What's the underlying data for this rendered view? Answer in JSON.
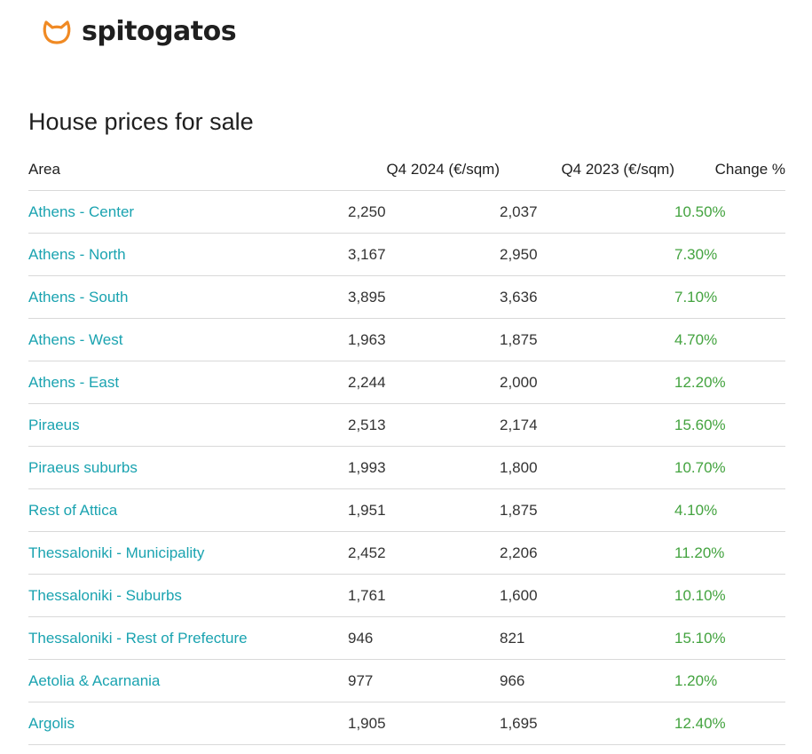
{
  "brand": {
    "name": "spitogatos",
    "color": "#f08a24"
  },
  "title": "House prices for sale",
  "table": {
    "headers": {
      "area": "Area",
      "q4_2024": "Q4 2024 (€/sqm)",
      "q4_2023": "Q4 2023 (€/sqm)",
      "change": "Change %"
    },
    "rows": [
      {
        "area": "Athens - Center",
        "q4_2024": "2,250",
        "q4_2023": "2,037",
        "change": "10.50%"
      },
      {
        "area": "Athens - North",
        "q4_2024": "3,167",
        "q4_2023": "2,950",
        "change": "7.30%"
      },
      {
        "area": "Athens - South",
        "q4_2024": "3,895",
        "q4_2023": "3,636",
        "change": "7.10%"
      },
      {
        "area": "Athens - West",
        "q4_2024": "1,963",
        "q4_2023": "1,875",
        "change": "4.70%"
      },
      {
        "area": "Athens - East",
        "q4_2024": "2,244",
        "q4_2023": "2,000",
        "change": "12.20%"
      },
      {
        "area": "Piraeus",
        "q4_2024": "2,513",
        "q4_2023": "2,174",
        "change": "15.60%"
      },
      {
        "area": "Piraeus suburbs",
        "q4_2024": "1,993",
        "q4_2023": "1,800",
        "change": "10.70%"
      },
      {
        "area": "Rest of Attica",
        "q4_2024": "1,951",
        "q4_2023": "1,875",
        "change": "4.10%"
      },
      {
        "area": "Thessaloniki - Municipality",
        "q4_2024": "2,452",
        "q4_2023": "2,206",
        "change": "11.20%"
      },
      {
        "area": "Thessaloniki - Suburbs",
        "q4_2024": "1,761",
        "q4_2023": "1,600",
        "change": "10.10%"
      },
      {
        "area": "Thessaloniki - Rest of Prefecture",
        "q4_2024": "946",
        "q4_2023": "821",
        "change": "15.10%"
      },
      {
        "area": "Aetolia & Acarnania",
        "q4_2024": "977",
        "q4_2023": "966",
        "change": "1.20%"
      },
      {
        "area": "Argolis",
        "q4_2024": "1,905",
        "q4_2023": "1,695",
        "change": "12.40%"
      }
    ]
  },
  "colors": {
    "link": "#1aa3b0",
    "change_positive": "#43a33f",
    "divider": "#d9d9d9"
  }
}
